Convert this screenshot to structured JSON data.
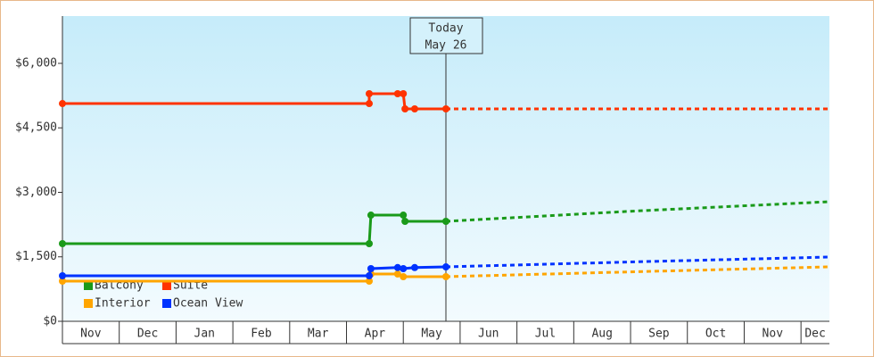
{
  "chart_data": {
    "type": "line",
    "annotation": {
      "lines": [
        "Today",
        "May 26"
      ],
      "x": 6.75
    },
    "months": [
      "Nov",
      "Dec",
      "Jan",
      "Feb",
      "Mar",
      "Apr",
      "May",
      "Jun",
      "Jul",
      "Aug",
      "Sep",
      "Oct",
      "Nov",
      "Dec"
    ],
    "xlim": [
      0,
      13.5
    ],
    "xticks": [
      1,
      2,
      3,
      4,
      5,
      6,
      7,
      8,
      9,
      10,
      11,
      12,
      13
    ],
    "ylim": [
      0,
      7100
    ],
    "yticks": [
      {
        "value": 0,
        "label": "$0"
      },
      {
        "value": 1500,
        "label": "$1,500"
      },
      {
        "value": 3000,
        "label": "$3,000"
      },
      {
        "value": 4500,
        "label": "$4,500"
      },
      {
        "value": 6000,
        "label": "$6,000"
      }
    ],
    "series": [
      {
        "name": "Balcony",
        "color": "#1a9a1a",
        "x": [
          0,
          5.4,
          5.43,
          6.0,
          6.03,
          6.75
        ],
        "values": [
          1806,
          1806,
          2470,
          2470,
          2325,
          2325
        ],
        "forecast_x": [
          6.75,
          10,
          13.5
        ],
        "forecast_values": [
          2325,
          2560,
          2782
        ]
      },
      {
        "name": "Suite",
        "color": "#ff3300",
        "x": [
          0,
          5.4,
          5.4,
          5.9,
          6.0,
          6.03,
          6.2,
          6.75
        ],
        "values": [
          5065,
          5065,
          5294,
          5294,
          5294,
          4941,
          4941,
          4941
        ],
        "forecast_x": [
          6.75,
          10,
          13.5
        ],
        "forecast_values": [
          4941,
          4941,
          4941
        ]
      },
      {
        "name": "Interior",
        "color": "#ffa500",
        "x": [
          0,
          5.4,
          5.43,
          5.9,
          6.0,
          6.75
        ],
        "values": [
          934,
          934,
          1100,
          1100,
          1038,
          1038
        ],
        "forecast_x": [
          6.75,
          10,
          13.5
        ],
        "forecast_values": [
          1038,
          1150,
          1266
        ]
      },
      {
        "name": "Ocean View",
        "color": "#0033ff",
        "x": [
          0,
          5.4,
          5.43,
          5.9,
          6.0,
          6.2,
          6.75
        ],
        "values": [
          1059,
          1059,
          1225,
          1250,
          1225,
          1250,
          1266
        ],
        "forecast_x": [
          6.75,
          10,
          13.5
        ],
        "forecast_values": [
          1266,
          1380,
          1495
        ]
      }
    ]
  }
}
